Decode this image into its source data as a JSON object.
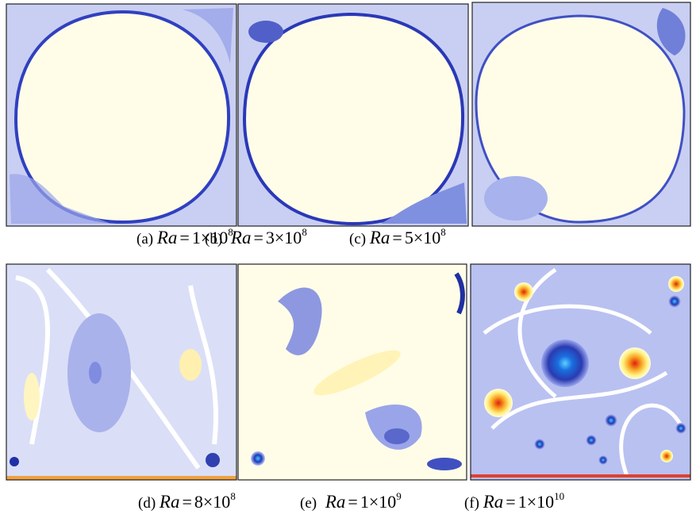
{
  "panels": [
    {
      "label": "(a)",
      "symbol": "Ra",
      "equals": "=",
      "value": "1×10",
      "exponent": "8"
    },
    {
      "label": "(b)",
      "symbol": "Ra",
      "equals": "=",
      "value": "3×10",
      "exponent": "8"
    },
    {
      "label": "(c)",
      "symbol": "Ra",
      "equals": "=",
      "value": "5×10",
      "exponent": "8"
    },
    {
      "label": "(d)",
      "symbol": "Ra",
      "equals": "=",
      "value": "8×10",
      "exponent": "8"
    },
    {
      "label": "(e)",
      "symbol": "Ra",
      "equals": "=",
      "value": "1×10",
      "exponent": "9"
    },
    {
      "label": "(f)",
      "symbol": "Ra",
      "equals": "=",
      "value": "1×10",
      "exponent": "10"
    }
  ]
}
